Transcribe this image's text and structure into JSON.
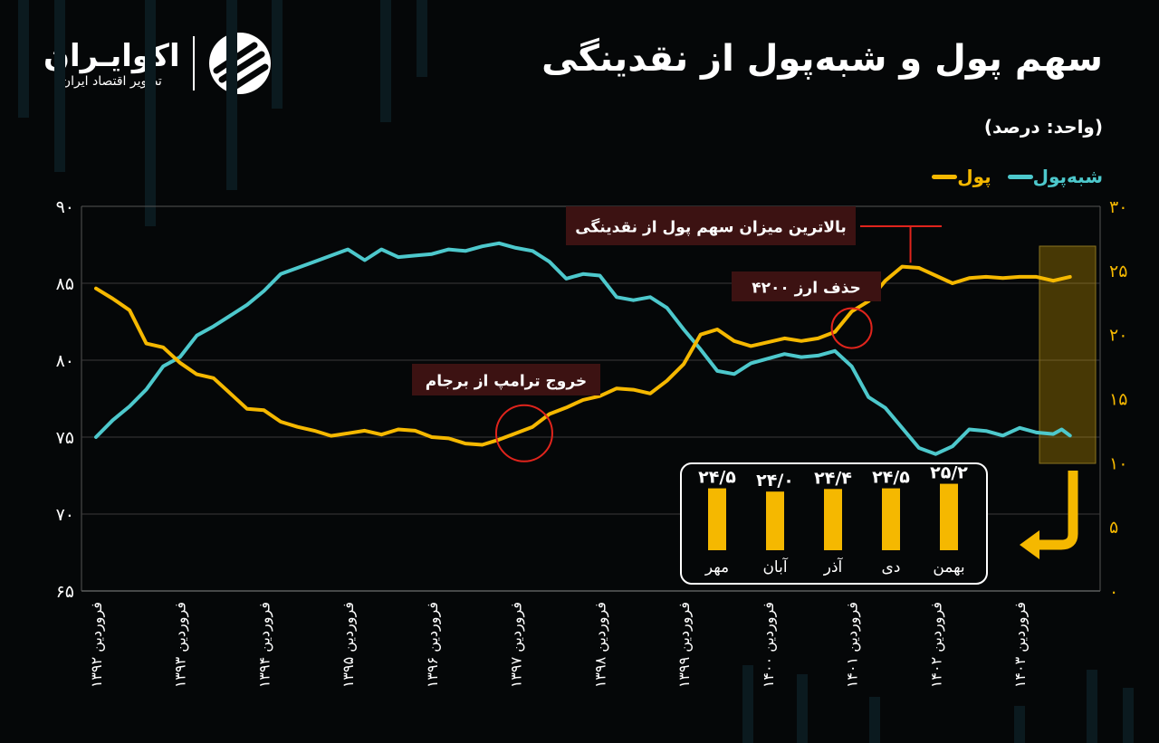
{
  "header": {
    "title": "سهم پول و شبه‌پول از نقدینگی",
    "unit": "(واحد: درصد)",
    "logo_name": "اکوایـران",
    "logo_subtitle": "تصویر اقتصاد ایران"
  },
  "chart_data": {
    "type": "line",
    "left_axis": {
      "ylim": [
        65,
        90
      ],
      "ticks": [
        "۶۵",
        "۷۰",
        "۷۵",
        "۸۰",
        "۸۵",
        "۹۰"
      ],
      "values": [
        65,
        70,
        75,
        80,
        85,
        90
      ]
    },
    "right_axis": {
      "ylim": [
        0,
        30
      ],
      "ticks": [
        "۰",
        "۵",
        "۱۰",
        "۱۵",
        "۲۰",
        "۲۵",
        "۳۰"
      ],
      "values": [
        0,
        5,
        10,
        15,
        20,
        25,
        30
      ]
    },
    "x_ticks": [
      "فروردین ۱۳۹۲",
      "فروردین ۱۳۹۳",
      "فروردین ۱۳۹۴",
      "فروردین ۱۳۹۵",
      "فروردین ۱۳۹۶",
      "فروردین ۱۳۹۷",
      "فروردین ۱۳۹۸",
      "فروردین ۱۳۹۹",
      "فروردین ۱۴۰۰",
      "فروردین ۱۴۰۱",
      "فروردین ۱۴۰۲",
      "فروردین ۱۴۰۳"
    ],
    "x_range": [
      1392.0,
      1403.7
    ],
    "series": [
      {
        "name": "شبه‌پول",
        "axis": "left",
        "color": "#4dc8cc",
        "points": [
          [
            1392.0,
            75.0
          ],
          [
            1392.2,
            76.1
          ],
          [
            1392.4,
            77.0
          ],
          [
            1392.6,
            78.1
          ],
          [
            1392.8,
            79.6
          ],
          [
            1393.0,
            80.2
          ],
          [
            1393.2,
            81.6
          ],
          [
            1393.4,
            82.2
          ],
          [
            1393.6,
            82.9
          ],
          [
            1393.8,
            83.6
          ],
          [
            1394.0,
            84.5
          ],
          [
            1394.2,
            85.6
          ],
          [
            1394.4,
            86.0
          ],
          [
            1394.6,
            86.4
          ],
          [
            1394.8,
            86.8
          ],
          [
            1395.0,
            87.2
          ],
          [
            1395.2,
            86.5
          ],
          [
            1395.4,
            87.2
          ],
          [
            1395.6,
            86.7
          ],
          [
            1395.8,
            86.8
          ],
          [
            1396.0,
            86.9
          ],
          [
            1396.2,
            87.2
          ],
          [
            1396.4,
            87.1
          ],
          [
            1396.6,
            87.4
          ],
          [
            1396.8,
            87.6
          ],
          [
            1397.0,
            87.3
          ],
          [
            1397.2,
            87.1
          ],
          [
            1397.4,
            86.4
          ],
          [
            1397.6,
            85.3
          ],
          [
            1397.8,
            85.6
          ],
          [
            1398.0,
            85.5
          ],
          [
            1398.2,
            84.1
          ],
          [
            1398.4,
            83.9
          ],
          [
            1398.6,
            84.1
          ],
          [
            1398.8,
            83.4
          ],
          [
            1399.0,
            82.0
          ],
          [
            1399.2,
            80.7
          ],
          [
            1399.4,
            79.3
          ],
          [
            1399.6,
            79.1
          ],
          [
            1399.8,
            79.8
          ],
          [
            1400.0,
            80.1
          ],
          [
            1400.2,
            80.4
          ],
          [
            1400.4,
            80.2
          ],
          [
            1400.6,
            80.3
          ],
          [
            1400.8,
            80.6
          ],
          [
            1401.0,
            79.6
          ],
          [
            1401.2,
            77.6
          ],
          [
            1401.4,
            76.9
          ],
          [
            1401.6,
            75.6
          ],
          [
            1401.8,
            74.3
          ],
          [
            1402.0,
            73.9
          ],
          [
            1402.2,
            74.4
          ],
          [
            1402.4,
            75.5
          ],
          [
            1402.6,
            75.4
          ],
          [
            1402.8,
            75.1
          ],
          [
            1403.0,
            75.6
          ],
          [
            1403.2,
            75.3
          ],
          [
            1403.4,
            75.2
          ],
          [
            1403.5,
            75.5
          ],
          [
            1403.6,
            75.1
          ]
        ]
      },
      {
        "name": "پول",
        "axis": "right",
        "color": "#f5b800",
        "points": [
          [
            1392.0,
            23.6
          ],
          [
            1392.2,
            22.8
          ],
          [
            1392.4,
            21.9
          ],
          [
            1392.6,
            19.3
          ],
          [
            1392.8,
            19.0
          ],
          [
            1393.0,
            17.8
          ],
          [
            1393.2,
            16.9
          ],
          [
            1393.4,
            16.6
          ],
          [
            1393.6,
            15.4
          ],
          [
            1393.8,
            14.2
          ],
          [
            1394.0,
            14.1
          ],
          [
            1394.2,
            13.2
          ],
          [
            1394.4,
            12.8
          ],
          [
            1394.6,
            12.5
          ],
          [
            1394.8,
            12.1
          ],
          [
            1395.0,
            12.3
          ],
          [
            1395.2,
            12.5
          ],
          [
            1395.4,
            12.2
          ],
          [
            1395.6,
            12.6
          ],
          [
            1395.8,
            12.5
          ],
          [
            1396.0,
            12.0
          ],
          [
            1396.2,
            11.9
          ],
          [
            1396.4,
            11.5
          ],
          [
            1396.6,
            11.4
          ],
          [
            1396.8,
            11.8
          ],
          [
            1397.0,
            12.3
          ],
          [
            1397.2,
            12.8
          ],
          [
            1397.4,
            13.8
          ],
          [
            1397.6,
            14.3
          ],
          [
            1397.8,
            14.9
          ],
          [
            1398.0,
            15.2
          ],
          [
            1398.2,
            15.8
          ],
          [
            1398.4,
            15.7
          ],
          [
            1398.6,
            15.4
          ],
          [
            1398.8,
            16.4
          ],
          [
            1399.0,
            17.7
          ],
          [
            1399.2,
            20.0
          ],
          [
            1399.4,
            20.4
          ],
          [
            1399.6,
            19.5
          ],
          [
            1399.8,
            19.1
          ],
          [
            1400.0,
            19.4
          ],
          [
            1400.2,
            19.7
          ],
          [
            1400.4,
            19.5
          ],
          [
            1400.6,
            19.7
          ],
          [
            1400.8,
            20.2
          ],
          [
            1401.0,
            21.8
          ],
          [
            1401.2,
            22.6
          ],
          [
            1401.4,
            24.2
          ],
          [
            1401.6,
            25.3
          ],
          [
            1401.8,
            25.2
          ],
          [
            1402.0,
            24.6
          ],
          [
            1402.2,
            24.0
          ],
          [
            1402.4,
            24.4
          ],
          [
            1402.6,
            24.5
          ],
          [
            1402.8,
            24.4
          ],
          [
            1403.0,
            24.5
          ],
          [
            1403.2,
            24.5
          ],
          [
            1403.4,
            24.2
          ],
          [
            1403.6,
            24.5
          ]
        ]
      }
    ],
    "annotations": [
      {
        "label": "خروج ترامپ از برجام",
        "x": 1397.1
      },
      {
        "label": "حذف ارز ۴۲۰۰",
        "x": 1401.0
      },
      {
        "label": "بالاترین میزان سهم پول از نقدینگی",
        "x": 1401.7
      }
    ],
    "inset": {
      "type": "bar",
      "categories": [
        "بهمن",
        "دی",
        "آذر",
        "آبان",
        "مهر"
      ],
      "values": [
        25.2,
        24.5,
        24.4,
        24.0,
        24.5
      ],
      "labels": [
        "۲۵/۲",
        "۲۴/۵",
        "۲۴/۴",
        "۲۴/۰",
        "۲۴/۵"
      ],
      "color": "#f5b800"
    }
  }
}
